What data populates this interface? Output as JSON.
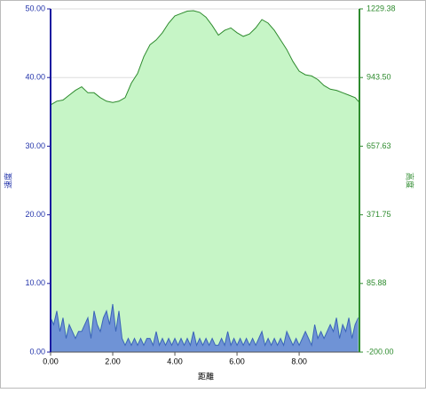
{
  "chart_data": {
    "type": "area",
    "xlabel": "距離",
    "ylabel": "速度",
    "y2label": "高度",
    "xlim": [
      0,
      9.94
    ],
    "xticks": [
      {
        "value": 0,
        "label": "0.00"
      },
      {
        "value": 2,
        "label": "2.00"
      },
      {
        "value": 4,
        "label": "4.00"
      },
      {
        "value": 6,
        "label": "6.00"
      },
      {
        "value": 8,
        "label": "8.00"
      }
    ],
    "ylim": [
      0,
      50
    ],
    "yticks": [
      {
        "value": 0,
        "label": "0.00"
      },
      {
        "value": 10,
        "label": "10.00"
      },
      {
        "value": 20,
        "label": "20.00"
      },
      {
        "value": 30,
        "label": "30.00"
      },
      {
        "value": 40,
        "label": "40.00"
      },
      {
        "value": 50,
        "label": "50.00"
      }
    ],
    "y2lim": [
      -200,
      1229.38
    ],
    "y2ticks": [
      {
        "value": -200,
        "label": "-200.00"
      },
      85.88,
      371.75,
      657.63,
      {
        "value": 943.5,
        "label": "943.50"
      },
      1229.38
    ],
    "grid": true,
    "series": [
      {
        "name": "高度",
        "axis": "y2",
        "color": "#2e8b2e",
        "fill": "#c6f5c6",
        "x": [
          0,
          0.2,
          0.4,
          0.6,
          0.8,
          1,
          1.2,
          1.4,
          1.6,
          1.8,
          2,
          2.2,
          2.4,
          2.6,
          2.8,
          3,
          3.2,
          3.4,
          3.6,
          3.8,
          4,
          4.2,
          4.4,
          4.6,
          4.8,
          5,
          5.2,
          5.4,
          5.6,
          5.8,
          6,
          6.2,
          6.4,
          6.6,
          6.8,
          7,
          7.2,
          7.4,
          7.6,
          7.8,
          8,
          8.2,
          8.4,
          8.6,
          8.8,
          9,
          9.2,
          9.4,
          9.6,
          9.8,
          9.94
        ],
        "values": [
          830,
          845,
          850,
          870,
          890,
          905,
          880,
          880,
          860,
          845,
          840,
          845,
          860,
          920,
          960,
          1030,
          1080,
          1100,
          1130,
          1170,
          1200,
          1210,
          1220,
          1222,
          1215,
          1195,
          1160,
          1120,
          1140,
          1150,
          1130,
          1115,
          1125,
          1150,
          1185,
          1170,
          1140,
          1100,
          1060,
          1010,
          970,
          955,
          950,
          935,
          910,
          895,
          890,
          880,
          870,
          860,
          840
        ]
      },
      {
        "name": "速度",
        "color": "#3a64b8",
        "fill": "#6f93d6",
        "x": [
          0,
          0.1,
          0.2,
          0.3,
          0.4,
          0.5,
          0.6,
          0.7,
          0.8,
          0.9,
          1,
          1.1,
          1.2,
          1.3,
          1.4,
          1.5,
          1.6,
          1.7,
          1.8,
          1.9,
          2,
          2.1,
          2.2,
          2.3,
          2.4,
          2.5,
          2.6,
          2.7,
          2.8,
          2.9,
          3,
          3.1,
          3.2,
          3.3,
          3.4,
          3.5,
          3.6,
          3.7,
          3.8,
          3.9,
          4,
          4.1,
          4.2,
          4.3,
          4.4,
          4.5,
          4.6,
          4.7,
          4.8,
          4.9,
          5,
          5.1,
          5.2,
          5.3,
          5.4,
          5.5,
          5.6,
          5.7,
          5.8,
          5.9,
          6,
          6.1,
          6.2,
          6.3,
          6.4,
          6.5,
          6.6,
          6.7,
          6.8,
          6.9,
          7,
          7.1,
          7.2,
          7.3,
          7.4,
          7.5,
          7.6,
          7.7,
          7.8,
          7.9,
          8,
          8.1,
          8.2,
          8.3,
          8.4,
          8.5,
          8.6,
          8.7,
          8.8,
          8.9,
          9,
          9.1,
          9.2,
          9.3,
          9.4,
          9.5,
          9.6,
          9.7,
          9.8,
          9.9
        ],
        "values": [
          5,
          4,
          6,
          3,
          5,
          2,
          4,
          3,
          2,
          3,
          3,
          4,
          5,
          2,
          6,
          4,
          3,
          5,
          6,
          4,
          7,
          3,
          6,
          2,
          1,
          2,
          1,
          2,
          1,
          2,
          1,
          2,
          2,
          1,
          3,
          1,
          2,
          1,
          2,
          1,
          2,
          1,
          2,
          1,
          2,
          1,
          3,
          1,
          2,
          1,
          2,
          1,
          2,
          1,
          1,
          2,
          1,
          3,
          1,
          2,
          1,
          2,
          1,
          2,
          1,
          2,
          1,
          2,
          3,
          1,
          2,
          1,
          2,
          1,
          2,
          1,
          3,
          2,
          1,
          2,
          1,
          2,
          3,
          2,
          1,
          4,
          2,
          3,
          2,
          3,
          4,
          3,
          5,
          2,
          4,
          3,
          5,
          2,
          4,
          5
        ]
      }
    ]
  }
}
